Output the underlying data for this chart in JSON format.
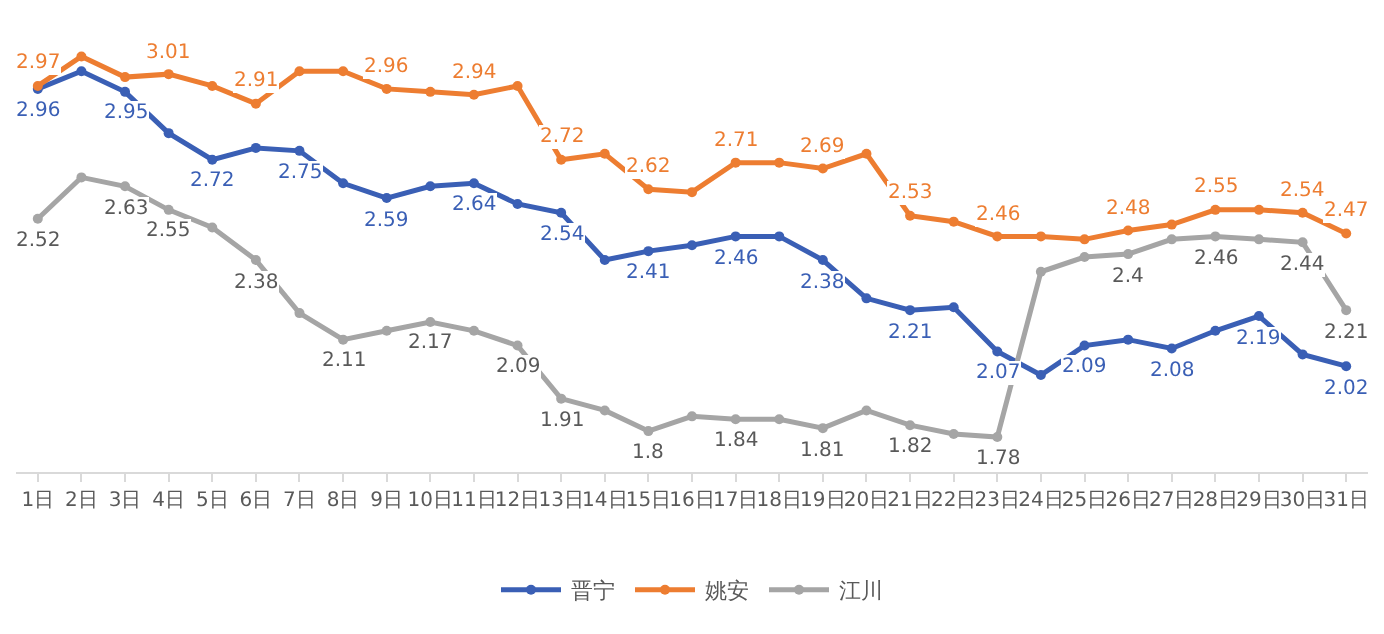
{
  "chart_data": {
    "type": "line",
    "categories": [
      "1日",
      "2日",
      "3日",
      "4日",
      "5日",
      "6日",
      "7日",
      "8日",
      "9日",
      "10日",
      "11日",
      "12日",
      "13日",
      "14日",
      "15日",
      "16日",
      "17日",
      "18日",
      "19日",
      "20日",
      "21日",
      "22日",
      "23日",
      "24日",
      "25日",
      "26日",
      "27日",
      "28日",
      "29日",
      "30日",
      "31日"
    ],
    "series": [
      {
        "name": "晋宁",
        "color": "#3a5fb5",
        "values": [
          2.96,
          3.02,
          2.95,
          2.81,
          2.72,
          2.76,
          2.75,
          2.64,
          2.59,
          2.63,
          2.64,
          2.57,
          2.54,
          2.38,
          2.41,
          2.43,
          2.46,
          2.46,
          2.38,
          2.25,
          2.21,
          2.22,
          2.07,
          1.99,
          2.09,
          2.11,
          2.08,
          2.14,
          2.19,
          2.06,
          2.02
        ],
        "value_labels": [
          "2.96",
          null,
          "2.95",
          null,
          "2.72",
          null,
          "2.75",
          null,
          "2.59",
          null,
          "2.64",
          null,
          "2.54",
          null,
          "2.41",
          null,
          "2.46",
          null,
          "2.38",
          null,
          "2.21",
          null,
          "2.07",
          null,
          "2.09",
          null,
          "2.08",
          null,
          "2.19",
          null,
          "2.02"
        ]
      },
      {
        "name": "姚安",
        "color": "#ed7d31",
        "values": [
          2.97,
          3.07,
          3.0,
          3.01,
          2.97,
          2.91,
          3.02,
          3.02,
          2.96,
          2.95,
          2.94,
          2.97,
          2.72,
          2.74,
          2.62,
          2.61,
          2.71,
          2.71,
          2.69,
          2.74,
          2.53,
          2.51,
          2.46,
          2.46,
          2.45,
          2.48,
          2.5,
          2.55,
          2.55,
          2.54,
          2.47
        ],
        "value_labels": [
          "2.97",
          null,
          null,
          "3.01",
          null,
          "2.91",
          null,
          null,
          "2.96",
          null,
          "2.94",
          null,
          "2.72",
          null,
          "2.62",
          null,
          "2.71",
          null,
          "2.69",
          null,
          "2.53",
          null,
          "2.46",
          null,
          null,
          "2.48",
          null,
          "2.55",
          null,
          "2.54",
          "2.47"
        ]
      },
      {
        "name": "江川",
        "color": "#a5a5a5",
        "values": [
          2.52,
          2.66,
          2.63,
          2.55,
          2.49,
          2.38,
          2.2,
          2.11,
          2.14,
          2.17,
          2.14,
          2.09,
          1.91,
          1.87,
          1.8,
          1.85,
          1.84,
          1.84,
          1.81,
          1.87,
          1.82,
          1.79,
          1.78,
          2.34,
          2.39,
          2.4,
          2.45,
          2.46,
          2.45,
          2.44,
          2.21
        ],
        "value_labels": [
          "2.52",
          null,
          "2.63",
          "2.55",
          null,
          "2.38",
          null,
          "2.11",
          null,
          "2.17",
          null,
          "2.09",
          "1.91",
          null,
          "1.8",
          null,
          "1.84",
          null,
          "1.81",
          null,
          "1.82",
          null,
          "1.78",
          null,
          null,
          "2.4",
          null,
          "2.46",
          null,
          "2.44",
          "2.21"
        ]
      }
    ],
    "marker": "circle",
    "line_style": "solid",
    "legend": "bottom",
    "tick_labels": "x"
  }
}
